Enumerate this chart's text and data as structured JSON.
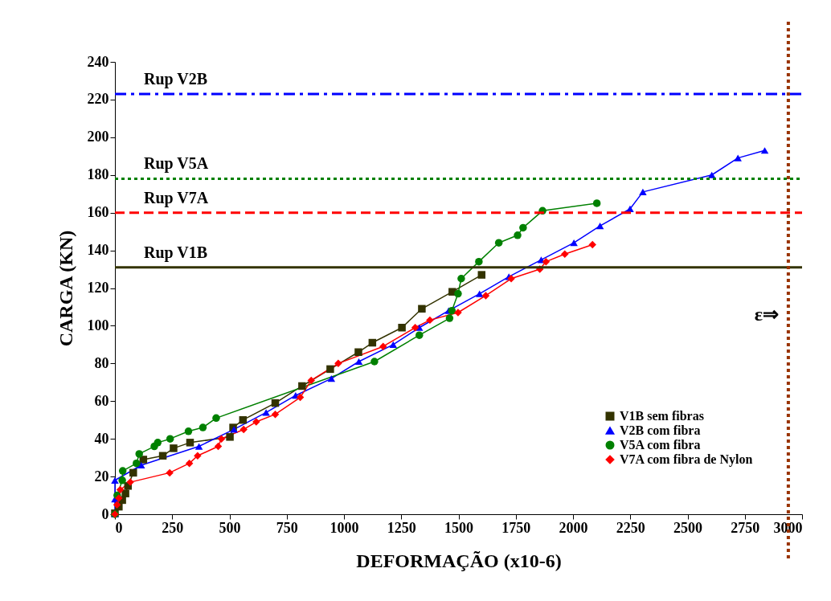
{
  "chart_data": {
    "type": "line",
    "xlabel": "DEFORMAÇÃO (x10-6)",
    "ylabel": "CARGA (KN)",
    "xlim": [
      0,
      3000
    ],
    "xticks": [
      0,
      250,
      500,
      750,
      1000,
      1250,
      1500,
      1750,
      2000,
      2250,
      2500,
      2750,
      3000
    ],
    "ylim": [
      0,
      240
    ],
    "yticks": [
      0,
      20,
      40,
      60,
      80,
      100,
      120,
      140,
      160,
      180,
      200,
      220,
      240
    ],
    "grid": false,
    "legend": "bottom right",
    "line_style": "solid",
    "series": [
      {
        "name": "V1B sem fibras",
        "color": "#333300",
        "marker": "square",
        "x": [
          0,
          17,
          32,
          46,
          57,
          80,
          124,
          209,
          256,
          328,
          502,
          516,
          559,
          700,
          817,
          940,
          1063,
          1124,
          1253,
          1340,
          1473,
          1601
        ],
        "values": [
          0.5,
          4,
          7.5,
          11,
          15,
          22,
          29,
          31,
          35,
          38,
          41,
          46,
          50,
          59,
          68,
          77,
          86,
          91,
          99,
          109,
          118,
          127
        ]
      },
      {
        "name": "V2B com fibra",
        "color": "#0000ff",
        "marker": "triangle",
        "x": [
          0,
          0,
          0,
          115,
          367,
          520,
          660,
          789,
          945,
          1065,
          1215,
          1329,
          1457,
          1592,
          1720,
          1861,
          2004,
          2118,
          2249,
          2305,
          2606,
          2720,
          2837
        ],
        "values": [
          0,
          8,
          18,
          26,
          36,
          45,
          54,
          63,
          72,
          81,
          90,
          99,
          108,
          117,
          126,
          135,
          144,
          153,
          162,
          171,
          180,
          189,
          193
        ]
      },
      {
        "name": "V5A com fibra",
        "color": "#008000",
        "marker": "circle",
        "x": [
          0,
          10,
          32,
          34,
          94,
          106,
          172,
          187,
          241,
          321,
          384,
          442,
          1133,
          1329,
          1461,
          1471,
          1498,
          1512,
          1589,
          1676,
          1758,
          1782,
          1867,
          2104
        ],
        "values": [
          0,
          10,
          18,
          23,
          27,
          32,
          36,
          38,
          40,
          44,
          46,
          51,
          81,
          95,
          104,
          108,
          117,
          125,
          134,
          144,
          148,
          152,
          161,
          165
        ]
      },
      {
        "name": "V7A com fibra de Nylon",
        "color": "#ff0000",
        "marker": "diamond",
        "x": [
          0,
          9,
          17,
          23,
          67,
          239,
          325,
          361,
          451,
          465,
          562,
          617,
          700,
          809,
          857,
          975,
          1171,
          1311,
          1375,
          1498,
          1619,
          1730,
          1855,
          1882,
          1964,
          2085
        ],
        "values": [
          0,
          5,
          8.5,
          13,
          17,
          22,
          27,
          31,
          36,
          40,
          45,
          49,
          53,
          62,
          71,
          80,
          89,
          99,
          103,
          107,
          116,
          125,
          130,
          134,
          138,
          143
        ]
      }
    ],
    "ref_lines": [
      {
        "axis": "y",
        "value": 223,
        "label": "Rup V2B",
        "color": "#0000ff",
        "line_style": "dashdot"
      },
      {
        "axis": "y",
        "value": 178,
        "label": "Rup V5A",
        "color": "#008000",
        "line_style": "dotted"
      },
      {
        "axis": "y",
        "value": 160,
        "label": "Rup V7A",
        "color": "#ff0000",
        "line_style": "dashed"
      },
      {
        "axis": "y",
        "value": 131,
        "label": "Rup V1B",
        "color": "#333300",
        "line_style": "solid"
      },
      {
        "axis": "x",
        "value": 2940,
        "label": "ε⇒",
        "color": "#993300",
        "line_style": "dotted"
      }
    ]
  }
}
